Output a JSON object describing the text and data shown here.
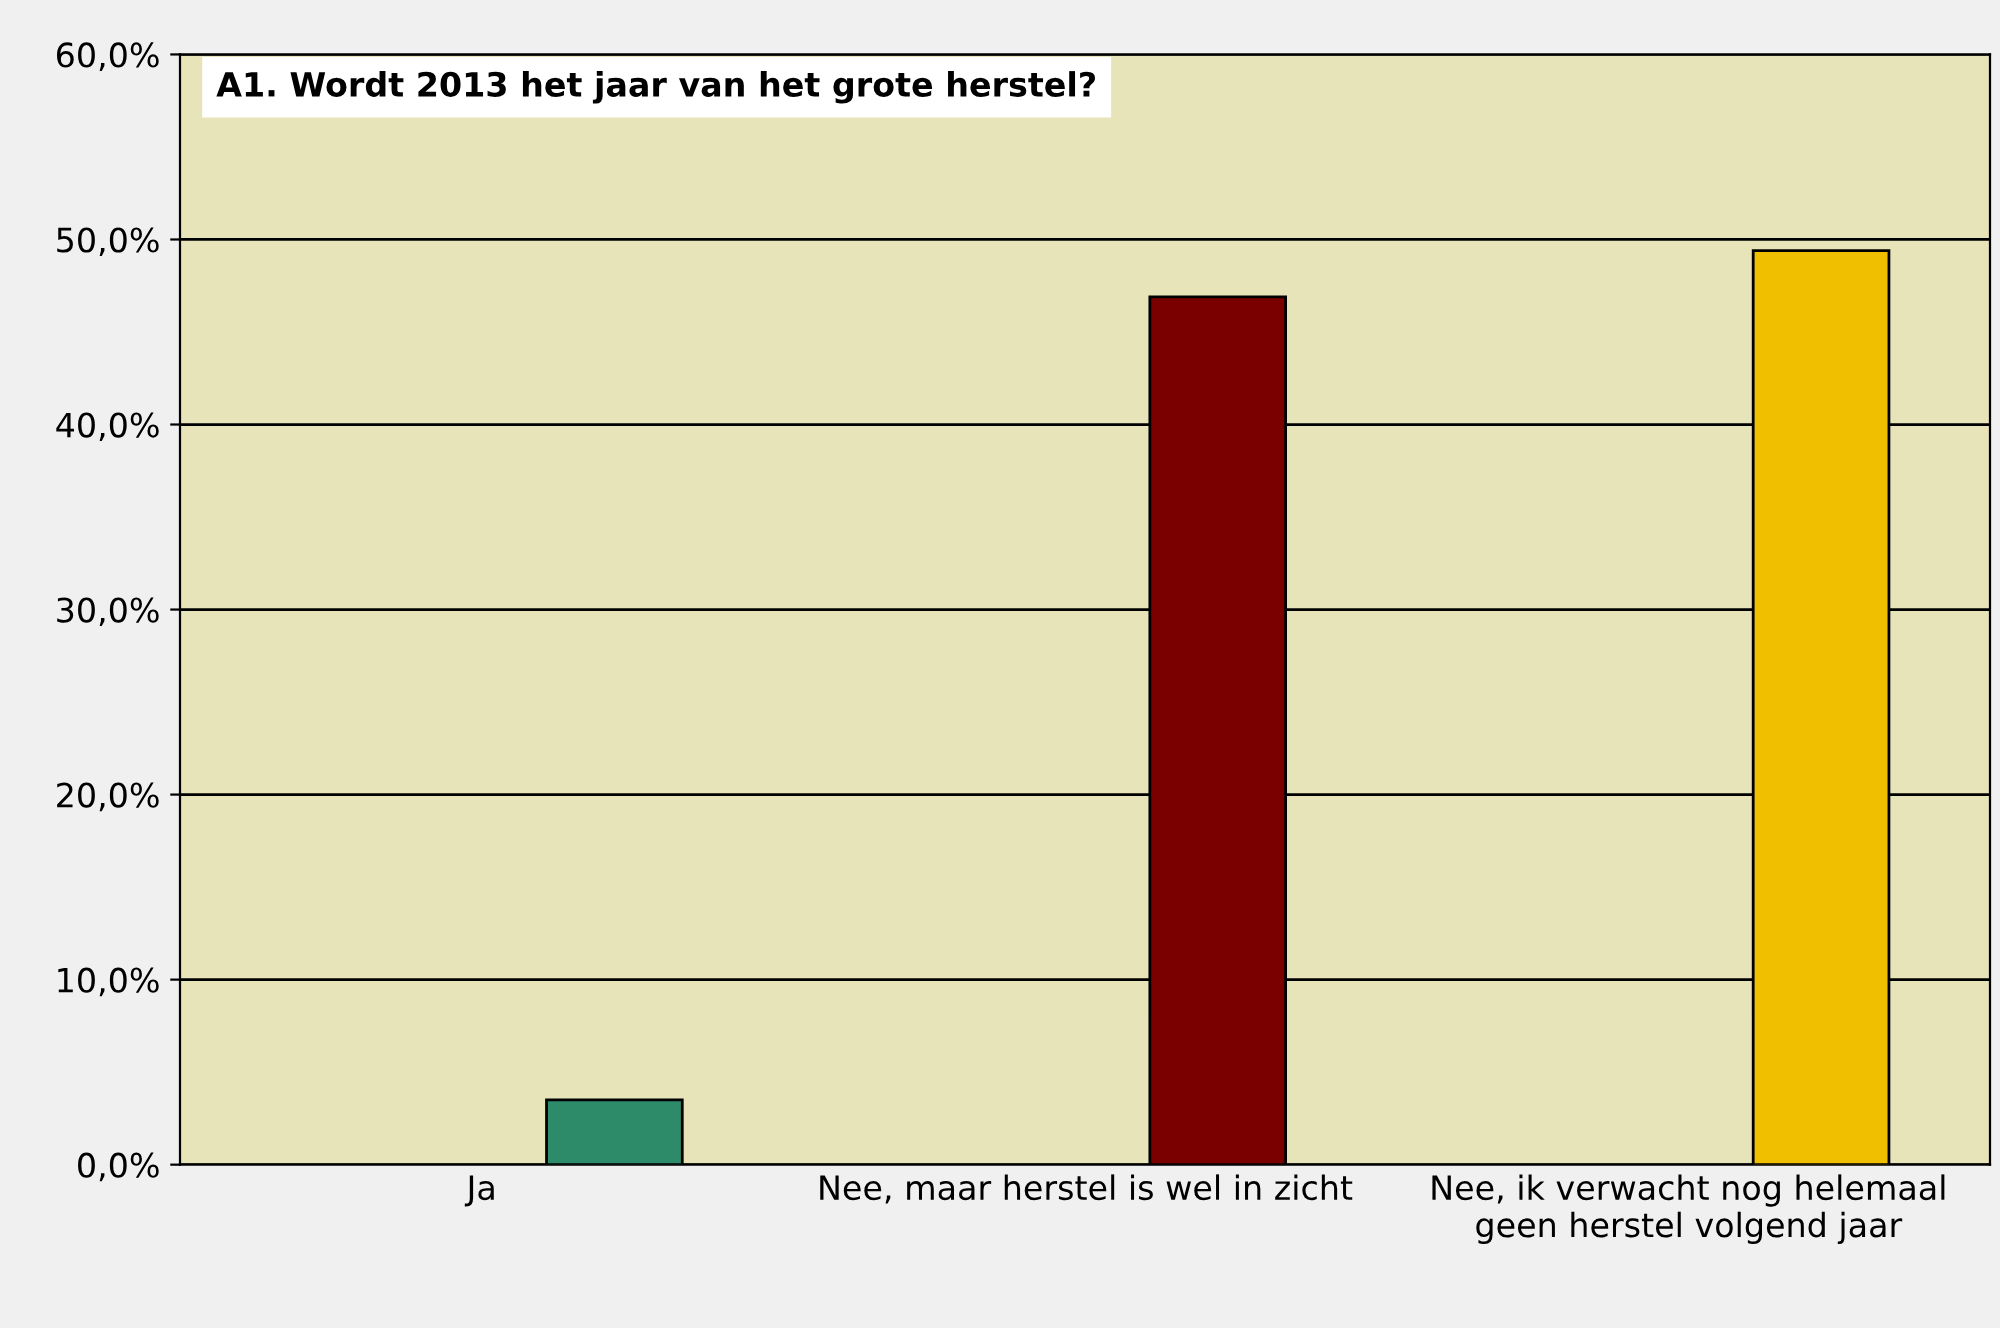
{
  "chart_data": {
    "type": "bar",
    "title": "A1. Wordt 2013 het jaar van het grote herstel?",
    "categories": [
      "Ja",
      "Nee, maar herstel is wel in zicht",
      "Nee, ik verwacht nog helemaal\ngeen herstel volgend jaar"
    ],
    "values": [
      3.5,
      46.9,
      49.4
    ],
    "colors": [
      "#2e8b6a",
      "#7a0000",
      "#f0c000"
    ],
    "ylim": [
      0,
      60
    ],
    "yticks": [
      {
        "value": 0,
        "label": "0,0%"
      },
      {
        "value": 10,
        "label": "10,0%"
      },
      {
        "value": 20,
        "label": "20,0%"
      },
      {
        "value": 30,
        "label": "30,0%"
      },
      {
        "value": 40,
        "label": "40,0%"
      },
      {
        "value": 50,
        "label": "50,0%"
      },
      {
        "value": 60,
        "label": "60,0%"
      }
    ],
    "grid": "y"
  }
}
